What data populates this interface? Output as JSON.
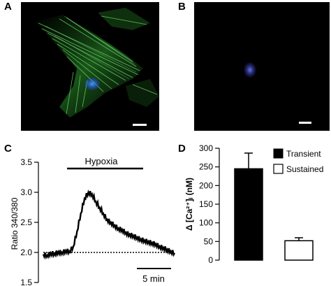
{
  "panels": {
    "A": {
      "letter": "A"
    },
    "B": {
      "letter": "B"
    },
    "C": {
      "letter": "C"
    },
    "D": {
      "letter": "D"
    }
  },
  "chart_data": [
    {
      "type": "line",
      "panel": "C",
      "ylabel": "Ratio 340/380",
      "ylim": [
        1.5,
        3.5
      ],
      "yticks": [
        "3.5",
        "3.0",
        "2.5",
        "2.0",
        "1.5"
      ],
      "ytick_values": [
        3.5,
        3.0,
        2.5,
        2.0,
        1.5
      ],
      "annotation": "Hypoxia",
      "time_scale_label": "5 min",
      "baseline": 2.0,
      "series": [
        {
          "x": [
            0,
            1,
            2,
            3,
            4,
            5,
            6,
            7,
            8,
            9,
            10,
            11,
            12,
            13,
            14,
            15,
            16,
            17,
            18,
            19,
            20,
            21,
            22,
            23,
            24,
            25,
            26,
            27,
            28,
            29,
            30,
            31,
            32,
            33,
            34,
            35
          ],
          "values": [
            1.97,
            1.95,
            1.99,
            1.98,
            2.01,
            2.0,
            2.03,
            2.02,
            2.1,
            2.35,
            2.65,
            2.9,
            3.0,
            2.97,
            2.85,
            2.75,
            2.65,
            2.55,
            2.5,
            2.45,
            2.4,
            2.38,
            2.33,
            2.3,
            2.28,
            2.25,
            2.22,
            2.2,
            2.18,
            2.16,
            2.14,
            2.1,
            2.08,
            2.05,
            2.02,
            1.99
          ]
        }
      ]
    },
    {
      "type": "bar",
      "panel": "D",
      "ylabel": "Δ [Ca²⁺]ᵢ (nM)",
      "ylim": [
        0,
        300
      ],
      "yticks": [
        "300",
        "250",
        "200",
        "150",
        "100",
        "50",
        "0"
      ],
      "ytick_values": [
        300,
        250,
        200,
        150,
        100,
        50,
        0
      ],
      "categories": [
        "Transient",
        "Sustained"
      ],
      "values": [
        245,
        52
      ],
      "errors": [
        42,
        8
      ],
      "colors": [
        "#000000",
        "#ffffff"
      ],
      "legend": [
        "Transient",
        "Sustained"
      ]
    }
  ]
}
